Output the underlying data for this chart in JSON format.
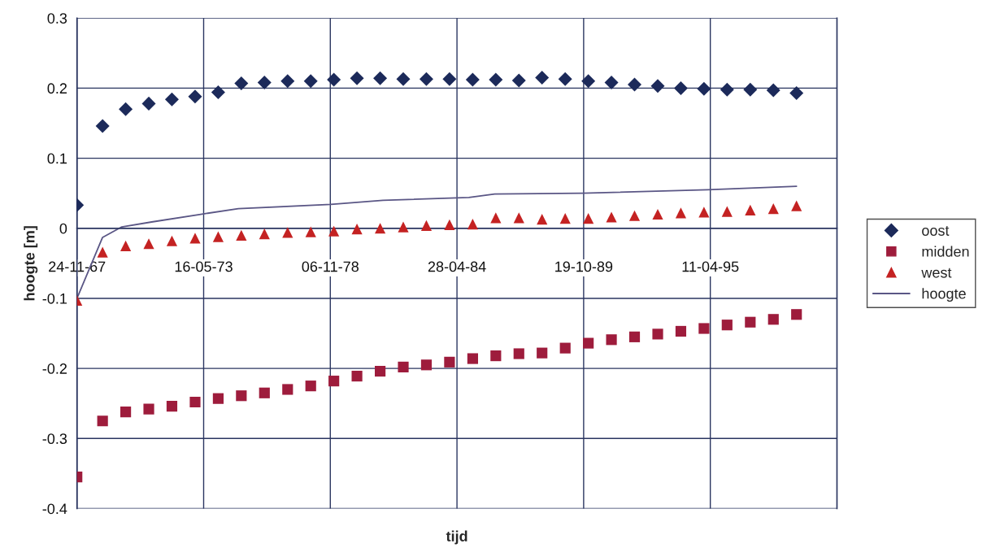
{
  "chart_data": {
    "type": "scatter",
    "xlabel": "tijd",
    "ylabel": "hoogte [m]",
    "xlim": [
      "1967-11-24",
      "2000-10-01"
    ],
    "xticks": [
      {
        "value": "1967-11-24",
        "label": "24-11-67"
      },
      {
        "value": "1973-05-16",
        "label": "16-05-73"
      },
      {
        "value": "1978-11-06",
        "label": "06-11-78"
      },
      {
        "value": "1984-04-28",
        "label": "28-04-84"
      },
      {
        "value": "1989-10-19",
        "label": "19-10-89"
      },
      {
        "value": "1995-04-11",
        "label": "11-04-95"
      }
    ],
    "ylim": [
      -0.4,
      0.3
    ],
    "yticks": [
      -0.4,
      -0.3,
      -0.2,
      -0.1,
      0,
      0.1,
      0.2,
      0.3
    ],
    "grid": true,
    "legend": "right",
    "x": [
      "1967-11-24",
      "1969-01-01",
      "1970-01-01",
      "1971-01-01",
      "1972-01-01",
      "1973-01-01",
      "1974-01-01",
      "1975-01-01",
      "1976-01-01",
      "1977-01-01",
      "1978-01-01",
      "1979-01-01",
      "1980-01-01",
      "1981-01-01",
      "1982-01-01",
      "1983-01-01",
      "1984-01-01",
      "1985-01-01",
      "1986-01-01",
      "1987-01-01",
      "1988-01-01",
      "1989-01-01",
      "1990-01-01",
      "1991-01-01",
      "1992-01-01",
      "1993-01-01",
      "1994-01-01",
      "1995-01-01",
      "1996-01-01",
      "1997-01-01",
      "1998-01-01",
      "1999-01-01"
    ],
    "series": [
      {
        "name": "oost",
        "color": "#1c2a5a",
        "marker": "diamond",
        "values": [
          0.033,
          0.146,
          0.17,
          0.178,
          0.184,
          0.188,
          0.194,
          0.207,
          0.208,
          0.21,
          0.21,
          0.212,
          0.214,
          0.214,
          0.213,
          0.213,
          0.213,
          0.212,
          0.212,
          0.211,
          0.215,
          0.213,
          0.21,
          0.208,
          0.205,
          0.203,
          0.2,
          0.199,
          0.198,
          0.198,
          0.197,
          0.193
        ]
      },
      {
        "name": "midden",
        "color": "#9e1c3c",
        "marker": "square",
        "values": [
          -0.355,
          -0.275,
          -0.262,
          -0.258,
          -0.254,
          -0.248,
          -0.243,
          -0.239,
          -0.235,
          -0.23,
          -0.225,
          -0.218,
          -0.211,
          -0.204,
          -0.198,
          -0.195,
          -0.191,
          -0.186,
          -0.182,
          -0.179,
          -0.178,
          -0.171,
          -0.164,
          -0.159,
          -0.155,
          -0.151,
          -0.147,
          -0.143,
          -0.138,
          -0.134,
          -0.13,
          -0.123
        ]
      },
      {
        "name": "west",
        "color": "#c42222",
        "marker": "triangle",
        "values": [
          -0.103,
          -0.034,
          -0.025,
          -0.022,
          -0.018,
          -0.014,
          -0.012,
          -0.01,
          -0.008,
          -0.006,
          -0.005,
          -0.004,
          -0.001,
          0.0,
          0.002,
          0.004,
          0.005,
          0.006,
          0.015,
          0.015,
          0.013,
          0.014,
          0.014,
          0.016,
          0.018,
          0.02,
          0.022,
          0.023,
          0.024,
          0.026,
          0.028,
          0.032
        ]
      },
      {
        "name": "hoogte",
        "type": "line",
        "color": "#5a5685",
        "marker": "none",
        "line_style": "solid",
        "x": [
          "1967-11-24",
          "1969-01-01",
          "1969-11-01",
          "1971-02-15",
          "1973-04-01",
          "1974-11-15",
          "1978-11-15",
          "1981-02-15",
          "1984-11-01",
          "1985-12-15",
          "1989-10-01",
          "1995-03-01",
          "1999-01-01"
        ],
        "values": [
          -0.1,
          -0.013,
          0.002,
          0.009,
          0.02,
          0.028,
          0.034,
          0.04,
          0.044,
          0.049,
          0.05,
          0.055,
          0.06
        ]
      }
    ]
  }
}
